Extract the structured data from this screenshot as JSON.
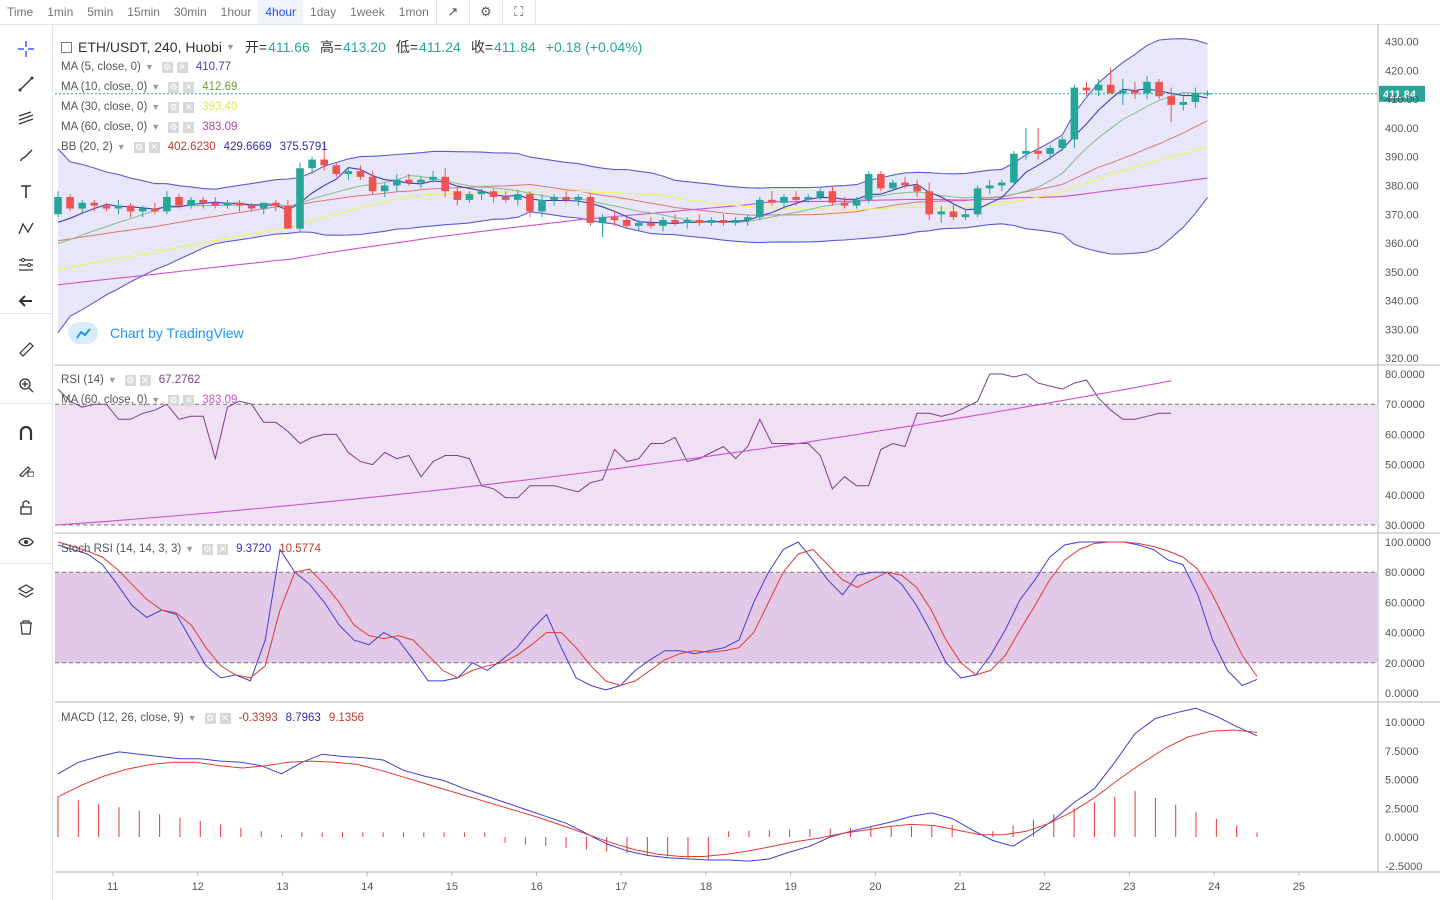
{
  "toolbar": {
    "timeframes": [
      "Time",
      "1min",
      "5min",
      "15min",
      "30min",
      "1hour",
      "4hour",
      "1day",
      "1week",
      "1mon"
    ],
    "active": "4hour",
    "icons": [
      "line-chart-icon",
      "settings-icon",
      "fullscreen-icon"
    ]
  },
  "sidebar": {
    "tools": [
      "crosshair-icon",
      "trend-line-icon",
      "fib-icon",
      "brush-icon",
      "text-icon",
      "pattern-icon",
      "forecast-icon",
      "back-arrow-icon",
      "ruler-icon",
      "zoom-in-icon",
      "magnet-icon",
      "lock-drawing-icon",
      "unlock-icon",
      "eye-icon",
      "layers-icon",
      "trash-icon"
    ]
  },
  "header": {
    "symbol": "ETH/USDT, 240, Huobi",
    "open_label": "开=",
    "open": "411.66",
    "high_label": "高=",
    "high": "413.20",
    "low_label": "低=",
    "low": "411.24",
    "close_label": "收=",
    "close": "411.84",
    "change": "+0.18 (+0.04%)"
  },
  "legends": {
    "ma5": {
      "label": "MA (5, close, 0)",
      "value": "410.77"
    },
    "ma10": {
      "label": "MA (10, close, 0)",
      "value": "412.69"
    },
    "ma30": {
      "label": "MA (30, close, 0)",
      "value": "393.40"
    },
    "ma60": {
      "label": "MA (60, close, 0)",
      "value": "383.09"
    },
    "bb": {
      "label": "BB (20, 2)",
      "v1": "402.6230",
      "v2": "429.6669",
      "v3": "375.5791"
    },
    "rsi": {
      "label": "RSI (14)",
      "value": "67.2762"
    },
    "rsi_ma": {
      "label": "MA (60, close, 0)",
      "value": "383.09"
    },
    "stoch": {
      "label": "Stoch RSI (14, 14, 3, 3)",
      "k": "9.3720",
      "d": "10.5774"
    },
    "macd": {
      "label": "MACD (12, 26, close, 9)",
      "hist": "-0.3393",
      "macd": "8.7963",
      "signal": "9.1356"
    }
  },
  "watermark": "Chart by TradingView",
  "price_tag": "411.84",
  "colors": {
    "up": "#26a69a",
    "down": "#ef5350",
    "ma5": "#3f3fbf",
    "ma10": "#8fbf8f",
    "ma30": "#f2f25a",
    "ma60": "#d24fd2",
    "bb": "#5b5bd6"
  },
  "chart_data": {
    "type": "candlestick",
    "x_labels": [
      "11",
      "12",
      "13",
      "14",
      "15",
      "16",
      "17",
      "18",
      "19",
      "20",
      "21",
      "22",
      "23",
      "24",
      "25"
    ],
    "price_axis": {
      "ticks": [
        "430.00",
        "420.00",
        "410.00",
        "400.00",
        "390.00",
        "380.00",
        "370.00",
        "360.00",
        "350.00",
        "340.00",
        "330.00",
        "320.00"
      ],
      "range": [
        318,
        434
      ]
    },
    "candles_ohlc": [
      [
        370,
        378,
        369,
        376
      ],
      [
        376,
        377,
        371,
        372
      ],
      [
        372,
        375,
        370,
        374
      ],
      [
        374,
        375,
        371,
        373
      ],
      [
        373,
        374,
        371,
        372
      ],
      [
        372,
        375,
        370,
        373
      ],
      [
        373,
        374,
        369,
        371
      ],
      [
        371,
        373,
        369,
        372
      ],
      [
        372,
        374,
        370,
        371
      ],
      [
        371,
        378,
        370,
        376
      ],
      [
        376,
        377,
        372,
        373
      ],
      [
        373,
        376,
        372,
        375
      ],
      [
        375,
        376,
        372,
        374
      ],
      [
        374,
        376,
        372,
        373
      ],
      [
        373,
        375,
        372,
        374
      ],
      [
        374,
        375,
        371,
        373
      ],
      [
        373,
        374,
        371,
        372
      ],
      [
        372,
        374,
        370,
        374
      ],
      [
        374,
        375,
        371,
        373
      ],
      [
        373,
        375,
        367,
        365
      ],
      [
        365,
        388,
        364,
        386
      ],
      [
        386,
        390,
        384,
        389
      ],
      [
        389,
        395,
        385,
        387
      ],
      [
        387,
        388,
        383,
        384
      ],
      [
        384,
        386,
        382,
        385
      ],
      [
        385,
        387,
        382,
        383
      ],
      [
        383,
        385,
        377,
        378
      ],
      [
        378,
        381,
        376,
        380
      ],
      [
        380,
        384,
        378,
        382
      ],
      [
        382,
        384,
        380,
        381
      ],
      [
        381,
        383,
        379,
        382
      ],
      [
        382,
        385,
        381,
        383
      ],
      [
        383,
        386,
        376,
        378
      ],
      [
        378,
        380,
        373,
        375
      ],
      [
        375,
        378,
        374,
        377
      ],
      [
        377,
        379,
        375,
        378
      ],
      [
        378,
        379,
        374,
        376
      ],
      [
        376,
        378,
        374,
        375
      ],
      [
        375,
        378,
        373,
        377
      ],
      [
        377,
        378,
        369,
        371
      ],
      [
        371,
        377,
        369,
        375
      ],
      [
        375,
        377,
        373,
        376
      ],
      [
        376,
        378,
        374,
        375
      ],
      [
        375,
        377,
        373,
        376
      ],
      [
        376,
        377,
        366,
        367
      ],
      [
        367,
        370,
        362,
        369
      ],
      [
        369,
        371,
        366,
        368
      ],
      [
        368,
        369,
        365,
        366
      ],
      [
        366,
        368,
        364,
        367
      ],
      [
        367,
        369,
        365,
        366
      ],
      [
        366,
        369,
        364,
        368
      ],
      [
        368,
        370,
        366,
        367
      ],
      [
        367,
        369,
        365,
        368
      ],
      [
        368,
        370,
        366,
        367
      ],
      [
        367,
        369,
        366,
        368
      ],
      [
        368,
        370,
        366,
        367
      ],
      [
        367,
        369,
        366,
        368
      ],
      [
        368,
        370,
        366,
        369
      ],
      [
        369,
        376,
        368,
        375
      ],
      [
        375,
        378,
        373,
        374
      ],
      [
        374,
        377,
        372,
        376
      ],
      [
        376,
        378,
        373,
        375
      ],
      [
        375,
        377,
        374,
        376
      ],
      [
        376,
        379,
        375,
        378
      ],
      [
        378,
        380,
        373,
        374
      ],
      [
        374,
        376,
        372,
        373
      ],
      [
        373,
        376,
        372,
        375
      ],
      [
        375,
        385,
        374,
        384
      ],
      [
        384,
        385,
        378,
        379
      ],
      [
        379,
        382,
        378,
        381
      ],
      [
        381,
        383,
        379,
        380
      ],
      [
        380,
        382,
        376,
        378
      ],
      [
        378,
        381,
        368,
        370
      ],
      [
        370,
        373,
        367,
        371
      ],
      [
        371,
        374,
        368,
        369
      ],
      [
        369,
        372,
        368,
        370
      ],
      [
        370,
        380,
        369,
        379
      ],
      [
        379,
        382,
        377,
        380
      ],
      [
        380,
        382,
        378,
        381
      ],
      [
        381,
        392,
        380,
        391
      ],
      [
        391,
        400,
        389,
        392
      ],
      [
        392,
        400,
        389,
        391
      ],
      [
        391,
        394,
        389,
        393
      ],
      [
        393,
        397,
        392,
        396
      ],
      [
        396,
        415,
        393,
        414
      ],
      [
        414,
        416,
        411,
        413
      ],
      [
        413,
        417,
        411,
        415
      ],
      [
        415,
        421,
        413,
        412
      ],
      [
        412,
        417,
        408,
        413
      ],
      [
        413,
        416,
        410,
        412
      ],
      [
        412,
        418,
        410,
        416
      ],
      [
        416,
        417,
        410,
        411
      ],
      [
        411,
        414,
        402,
        408
      ],
      [
        408,
        411,
        406,
        409
      ],
      [
        409,
        414,
        407,
        412
      ],
      [
        412,
        413,
        411,
        412
      ]
    ],
    "rsi_axis": {
      "ticks": [
        "80.0000",
        "70.0000",
        "60.0000",
        "50.0000",
        "40.0000",
        "30.0000"
      ],
      "band": [
        30,
        70
      ]
    },
    "stoch_axis": {
      "ticks": [
        "100.0000",
        "80.0000",
        "60.0000",
        "40.0000",
        "20.0000",
        "0.0000"
      ],
      "band": [
        20,
        80
      ]
    },
    "macd_axis": {
      "ticks": [
        "10.0000",
        "7.5000",
        "5.0000",
        "2.5000",
        "0.0000",
        "-2.5000"
      ]
    }
  }
}
